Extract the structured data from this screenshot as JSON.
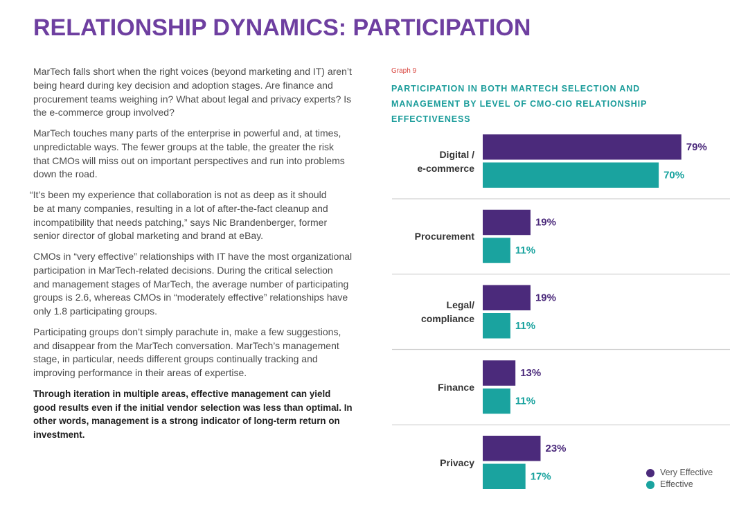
{
  "header": {
    "title": "RELATIONSHIP DYNAMICS: PARTICIPATION"
  },
  "article": {
    "paragraphs": [
      "MarTech falls short when the right voices (beyond marketing and IT) aren’t\nbeing heard during key decision and adoption stages. Are finance and\nprocurement teams weighing in? What about legal and privacy experts? Is\nthe e-commerce group involved?",
      "MarTech touches many parts of the enterprise in powerful and, at times,\nunpredictable ways. The fewer groups at the table, the greater the risk\nthat CMOs will miss out on important perspectives and run into problems\ndown the road.",
      "“It’s been my experience that collaboration is not as deep as it should\nbe at many companies, resulting in a lot of after-the-fact cleanup and\nincompatibility that needs patching,” says Nic Brandenberger, former\nsenior director of global marketing and brand at eBay.",
      "CMOs in “very effective” relationships with IT have the most organizational\nparticipation in MarTech-related decisions. During the critical selection\nand management stages of MarTech, the average number of participating\ngroups is 2.6, whereas CMOs in “moderately effective” relationships have\nonly 1.8 participating groups.",
      "Participating groups don’t simply parachute in, make a few suggestions,\nand disappear from the MarTech conversation. MarTech’s management\nstage, in particular, needs different groups continually tracking and\nimproving performance in their areas of expertise."
    ],
    "takeaway": "Through iteration in multiple areas, effective management can yield\ngood results even if the initial vendor selection was less than optimal. In\nother words, management is a strong indicator of long-term return on\ninvestment."
  },
  "theme": {
    "title_color": "#6e3fa0",
    "heading_color": "#1a9c9a",
    "graph_label_color": "#d8433c",
    "body_text_color": "#4a4a4a",
    "emphasis_text_color": "#1f1f1f",
    "divider_color": "#d2d2d2"
  },
  "chart_data": {
    "type": "bar",
    "orientation": "horizontal",
    "graph_label": "Graph 9",
    "title": "PARTICIPATION IN BOTH MARTECH SELECTION AND\nMANAGEMENT BY LEVEL OF CMO-CIO RELATIONSHIP\nEFFECTIVENESS",
    "categories": [
      "Digital /\ne-commerce",
      "Procurement",
      "Legal/\ncompliance",
      "Finance",
      "Privacy"
    ],
    "series": [
      {
        "name": "Very Effective",
        "color": "#4b2a7b",
        "values": [
          79,
          19,
          19,
          13,
          23
        ],
        "data_labels": [
          "79%",
          "19%",
          "19%",
          "13%",
          "23%"
        ]
      },
      {
        "name": "Effective",
        "color": "#1aa39f",
        "values": [
          70,
          11,
          11,
          11,
          17
        ],
        "data_labels": [
          "70%",
          "11%",
          "11%",
          "11%",
          "17%"
        ]
      }
    ],
    "legend": "bottom-right",
    "grid": false,
    "category_dividers": true
  }
}
